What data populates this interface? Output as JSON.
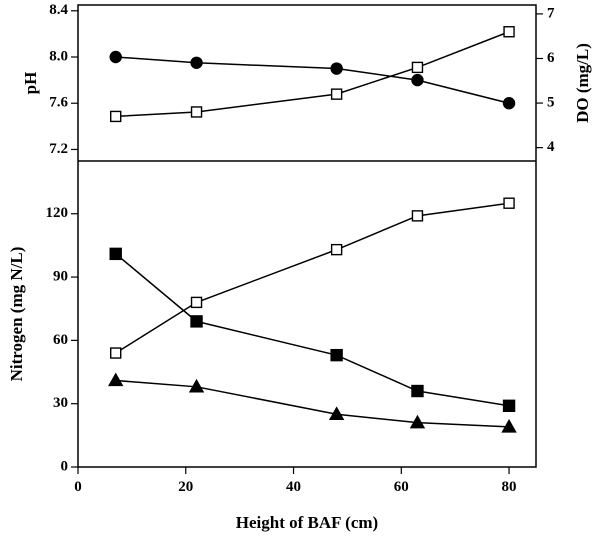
{
  "chart_data": [
    {
      "type": "line",
      "panel": "top",
      "x": [
        7,
        22,
        48,
        63,
        80
      ],
      "xlim": [
        0,
        85
      ],
      "ylabel": "pH",
      "ylim": [
        7.1,
        8.45
      ],
      "yticks": [
        "7.2",
        "7.6",
        "8.0",
        "8.4"
      ],
      "y2label": "DO (mg/L)",
      "y2lim": [
        3.7,
        7.2
      ],
      "y2ticks": [
        "4",
        "5",
        "6",
        "7"
      ],
      "grid": false,
      "series": [
        {
          "axis": "left",
          "marker": "filled-circle",
          "values": [
            8.0,
            7.95,
            7.9,
            7.8,
            7.6
          ]
        },
        {
          "axis": "right",
          "marker": "open-square",
          "values": [
            4.7,
            4.8,
            5.2,
            5.8,
            6.6
          ]
        }
      ]
    },
    {
      "type": "line",
      "panel": "bottom",
      "x": [
        7,
        22,
        48,
        63,
        80
      ],
      "xlabel": "Height of BAF (cm)",
      "xlim": [
        0,
        85
      ],
      "xticks": [
        "0",
        "20",
        "40",
        "60",
        "80"
      ],
      "ylabel": "Nitrogen (mg N/L)",
      "ylim": [
        0,
        145
      ],
      "yticks": [
        "0",
        "30",
        "60",
        "90",
        "120"
      ],
      "grid": false,
      "series": [
        {
          "marker": "open-square",
          "values": [
            54,
            78,
            103,
            119,
            125
          ]
        },
        {
          "marker": "filled-square",
          "values": [
            101,
            69,
            53,
            36,
            29
          ]
        },
        {
          "marker": "filled-triangle",
          "values": [
            41,
            38,
            25,
            21,
            19
          ]
        }
      ]
    }
  ]
}
